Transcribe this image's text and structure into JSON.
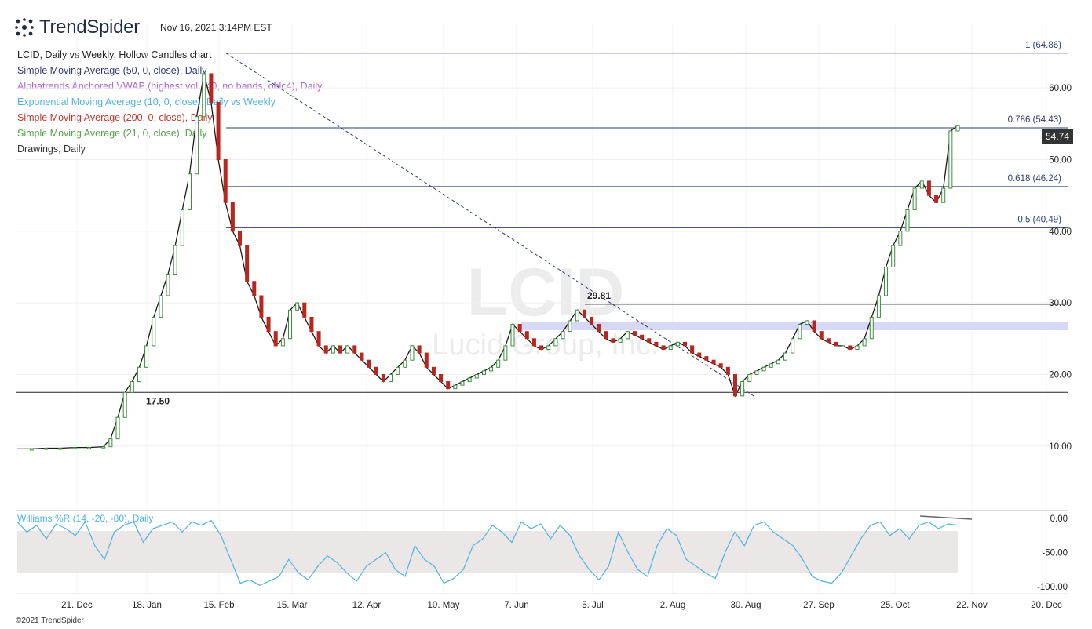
{
  "header": {
    "brand": "TrendSpider",
    "timestamp": "Nov 16, 2021 3:14PM EST"
  },
  "legend": {
    "title": "LCID, Daily vs Weekly, Hollow Candles chart",
    "items": [
      {
        "label": "Simple Moving Average (50, 0, close), Daily",
        "color": "#2f3e73"
      },
      {
        "label": "Alphatrends Anchored VWAP (highest vol., 40, no bands, ohlc4), Daily",
        "color": "#b065d6"
      },
      {
        "label": "Exponential Moving Average (10, 0, close), Daily vs Weekly",
        "color": "#4fb3df"
      },
      {
        "label": "Simple Moving Average (200, 0, close), Daily",
        "color": "#c0392b"
      },
      {
        "label": "Simple Moving Average (21, 0, close), Daily",
        "color": "#52a447"
      },
      {
        "label": "Drawings, Daily",
        "color": "#333333"
      }
    ]
  },
  "watermark": {
    "symbol": "LCID",
    "name": "Lucid Group, Inc."
  },
  "copyright": "©2021 TrendSpider",
  "chart_data": [
    {
      "type": "line",
      "symbol": "LCID",
      "x_tick_labels": [
        "21. Dec",
        "18. Jan",
        "15. Feb",
        "15. Mar",
        "12. Apr",
        "10. May",
        "7. Jun",
        "5. Jul",
        "2. Aug",
        "30. Aug",
        "27. Sep",
        "25. Oct",
        "22. Nov",
        "20. Dec"
      ],
      "y_ticks": [
        "10.00",
        "20.00",
        "30.00",
        "40.00",
        "50.00",
        "60.00"
      ],
      "ylim": [
        2.2,
        69.0
      ],
      "last_price": "54.74",
      "fib_levels": [
        {
          "label": "1 (64.86)",
          "value": 64.86
        },
        {
          "label": "0.786 (54.43)",
          "value": 54.43
        },
        {
          "label": "0.618 (46.24)",
          "value": 46.24
        },
        {
          "label": "0.5 (40.49)",
          "value": 40.49
        }
      ],
      "annotations": [
        {
          "label": "29.81",
          "value": 29.81
        },
        {
          "label": "17.50",
          "value": 17.5
        }
      ],
      "support_zone": [
        28.3,
        29.3
      ],
      "series": [
        {
          "key": "price",
          "x": [
            0,
            10,
            20,
            30,
            40,
            50,
            60,
            65,
            70,
            75,
            80,
            85,
            90,
            95,
            100,
            105,
            110,
            115,
            120,
            125,
            130,
            135,
            140,
            145,
            150,
            155,
            160,
            165,
            170,
            175,
            180,
            185,
            190,
            195,
            200,
            205,
            210,
            215,
            220,
            225,
            230,
            235,
            240,
            245,
            250,
            255,
            260,
            265,
            270,
            275,
            280,
            285,
            290,
            295,
            300,
            305,
            310
          ],
          "values": [
            9.6,
            9.6,
            9.7,
            9.7,
            9.8,
            9.8,
            9.9,
            11,
            14,
            17.5,
            19,
            21,
            24,
            28,
            31,
            34,
            38,
            43,
            48,
            56,
            62,
            58,
            50,
            44,
            40,
            38,
            33,
            31,
            28,
            26,
            24,
            25,
            29,
            30,
            28,
            26,
            24,
            23,
            24,
            23,
            24,
            23,
            22,
            21,
            20,
            19,
            20,
            21,
            22,
            24,
            23,
            21,
            20,
            19,
            18,
            18.5,
            19
          ]
        },
        {
          "key": "price_cont",
          "x": [
            315,
            320,
            325,
            330,
            335,
            340,
            345,
            350,
            355,
            360,
            365,
            370,
            375,
            380,
            385,
            390,
            395,
            400,
            405,
            410,
            415,
            420,
            425,
            430,
            435,
            440,
            445,
            450,
            455,
            460,
            465,
            470,
            475,
            480,
            485,
            490,
            495,
            500,
            505,
            510,
            515,
            520,
            525,
            530,
            535,
            540,
            545,
            550,
            555,
            560,
            565,
            570,
            575,
            580,
            585,
            590,
            595,
            600
          ],
          "values": [
            19.5,
            20,
            20.5,
            21,
            22,
            24,
            27,
            26,
            25,
            24,
            23.5,
            24,
            25,
            26,
            27.5,
            29,
            28,
            27,
            26,
            25,
            24.5,
            25,
            26,
            25.5,
            25,
            24.5,
            24,
            23.5,
            24,
            24.5,
            24,
            23,
            22.5,
            22,
            21.5,
            21,
            20,
            17,
            19,
            20,
            20.5,
            21,
            21.5,
            22,
            23,
            25,
            27,
            27.5,
            26,
            25,
            24.5,
            24,
            24,
            23.5,
            24,
            25,
            28,
            31
          ]
        },
        {
          "key": "price_end",
          "x": [
            605,
            610,
            615,
            620,
            625,
            630,
            635,
            640,
            645,
            650,
            655
          ],
          "values": [
            35,
            38,
            40,
            43,
            46,
            47,
            45,
            44,
            46,
            54,
            54.74
          ]
        }
      ],
      "williams_r": {
        "title": "Williams %R (14, -20, -80), Daily",
        "y_ticks": [
          "0.00",
          "-50.00",
          "-100.00"
        ],
        "ylim": [
          -100,
          0
        ],
        "bands": [
          -20,
          -80
        ],
        "values": [
          -5,
          -20,
          -10,
          -30,
          -8,
          -15,
          -25,
          -5,
          -40,
          -60,
          -20,
          -10,
          -5,
          -35,
          -15,
          -10,
          -5,
          -20,
          -5,
          -10,
          -3,
          -25,
          -60,
          -95,
          -90,
          -98,
          -92,
          -85,
          -60,
          -80,
          -90,
          -70,
          -55,
          -65,
          -80,
          -92,
          -70,
          -60,
          -50,
          -75,
          -85,
          -40,
          -60,
          -70,
          -95,
          -88,
          -75,
          -40,
          -30,
          -10,
          -20,
          -35,
          -5,
          -15,
          -8,
          -30,
          -10,
          -25,
          -55,
          -75,
          -90,
          -70,
          -20,
          -50,
          -75,
          -85,
          -40,
          -15,
          -25,
          -60,
          -70,
          -80,
          -88,
          -50,
          -20,
          -40,
          -10,
          -5,
          -20,
          -30,
          -40,
          -60,
          -85,
          -92,
          -95,
          -80,
          -55,
          -30,
          -10,
          -5,
          -25,
          -15,
          -30,
          -10,
          -5,
          -15,
          -8,
          -10
        ]
      }
    }
  ]
}
